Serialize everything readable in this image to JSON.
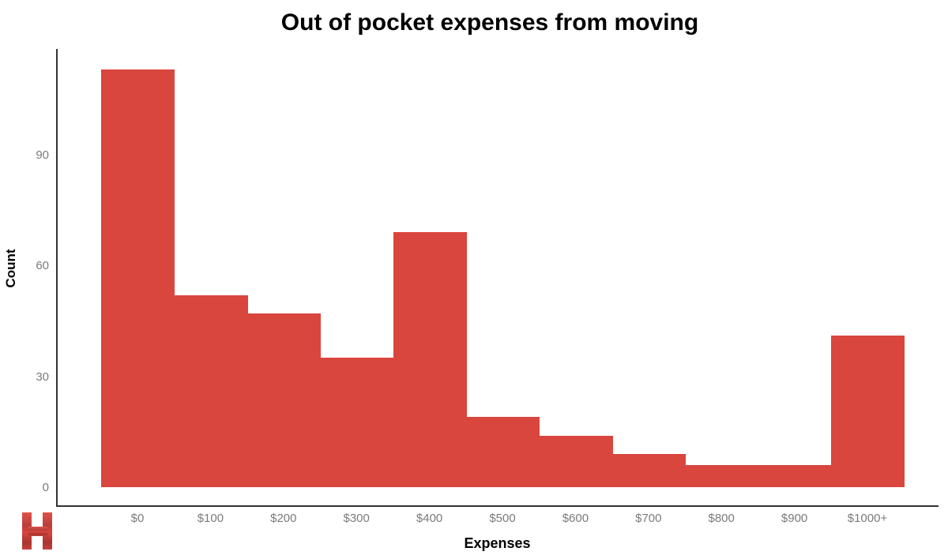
{
  "page": {
    "background": "#ffffff"
  },
  "chart_data": {
    "type": "bar",
    "subtype": "histogram",
    "title": "Out of pocket expenses from moving",
    "xlabel": "Expenses",
    "ylabel": "Count",
    "categories": [
      "$0",
      "$100",
      "$200",
      "$300",
      "$400",
      "$500",
      "$600",
      "$700",
      "$800",
      "$900",
      "$1000+"
    ],
    "values": [
      113,
      52,
      47,
      35,
      69,
      19,
      14,
      9,
      6,
      6,
      41
    ],
    "yticks": [
      0,
      30,
      60,
      90
    ],
    "ylim": [
      0,
      123
    ],
    "grid": false,
    "legend_position": "none",
    "bar_color": "#d8463d",
    "axis_color": "#333333",
    "tick_label_color": "#7a7a7a",
    "title_color": "#000000"
  },
  "logo": {
    "letter": "H",
    "color_light": "#e0524a",
    "color_mid": "#d8463d",
    "color_dark": "#a93531"
  }
}
